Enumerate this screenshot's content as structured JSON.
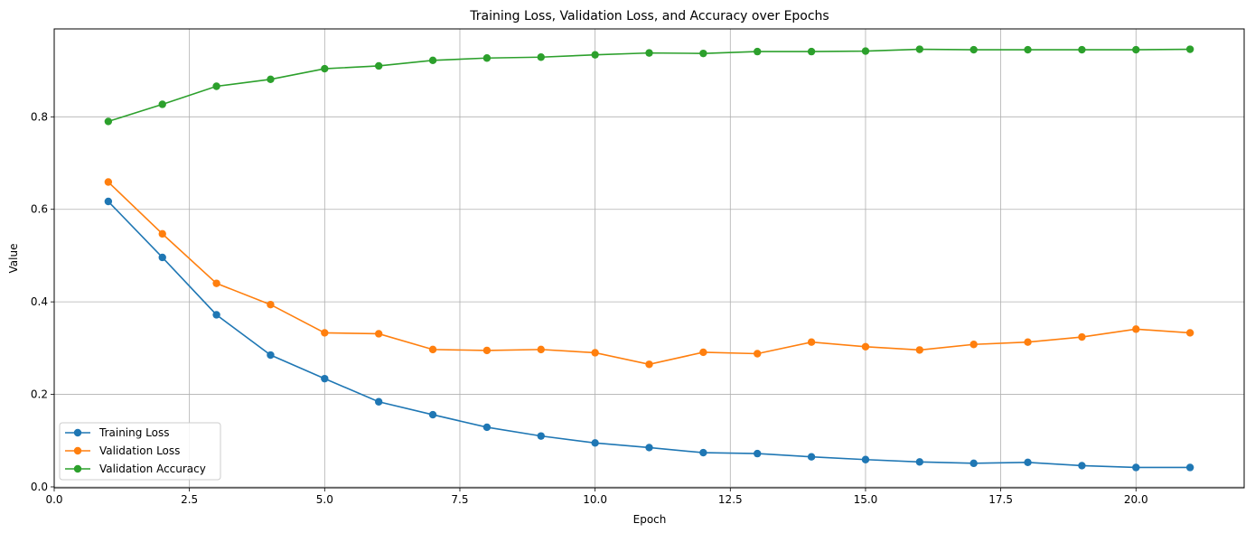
{
  "chart_data": {
    "type": "line",
    "title": "Training Loss, Validation Loss, and Accuracy over Epochs",
    "xlabel": "Epoch",
    "ylabel": "Value",
    "xlim": [
      0,
      22
    ],
    "ylim": [
      -0.002,
      0.99
    ],
    "x_ticks": [
      0.0,
      2.5,
      5.0,
      7.5,
      10.0,
      12.5,
      15.0,
      17.5,
      20.0
    ],
    "x_tick_labels": [
      "0.0",
      "2.5",
      "5.0",
      "7.5",
      "10.0",
      "12.5",
      "15.0",
      "17.5",
      "20.0"
    ],
    "y_ticks": [
      0.0,
      0.2,
      0.4,
      0.6,
      0.8
    ],
    "y_tick_labels": [
      "0.0",
      "0.2",
      "0.4",
      "0.6",
      "0.8"
    ],
    "grid": true,
    "legend_position": "lower-left",
    "x": [
      1,
      2,
      3,
      4,
      5,
      6,
      7,
      8,
      9,
      10,
      11,
      12,
      13,
      14,
      15,
      16,
      17,
      18,
      19,
      20,
      21
    ],
    "series": [
      {
        "name": "Training Loss",
        "color": "#1f77b4",
        "values": [
          0.617,
          0.496,
          0.372,
          0.285,
          0.234,
          0.184,
          0.156,
          0.129,
          0.11,
          0.095,
          0.085,
          0.074,
          0.072,
          0.065,
          0.059,
          0.054,
          0.051,
          0.053,
          0.046,
          0.042,
          0.042
        ]
      },
      {
        "name": "Validation Loss",
        "color": "#ff7f0e",
        "values": [
          0.659,
          0.547,
          0.44,
          0.394,
          0.333,
          0.331,
          0.297,
          0.295,
          0.297,
          0.29,
          0.265,
          0.291,
          0.288,
          0.313,
          0.303,
          0.296,
          0.308,
          0.313,
          0.324,
          0.341,
          0.333
        ]
      },
      {
        "name": "Validation Accuracy",
        "color": "#2ca02c",
        "values": [
          0.79,
          0.827,
          0.866,
          0.881,
          0.904,
          0.91,
          0.922,
          0.927,
          0.929,
          0.934,
          0.938,
          0.937,
          0.941,
          0.941,
          0.942,
          0.946,
          0.945,
          0.945,
          0.945,
          0.945,
          0.946
        ]
      }
    ]
  }
}
